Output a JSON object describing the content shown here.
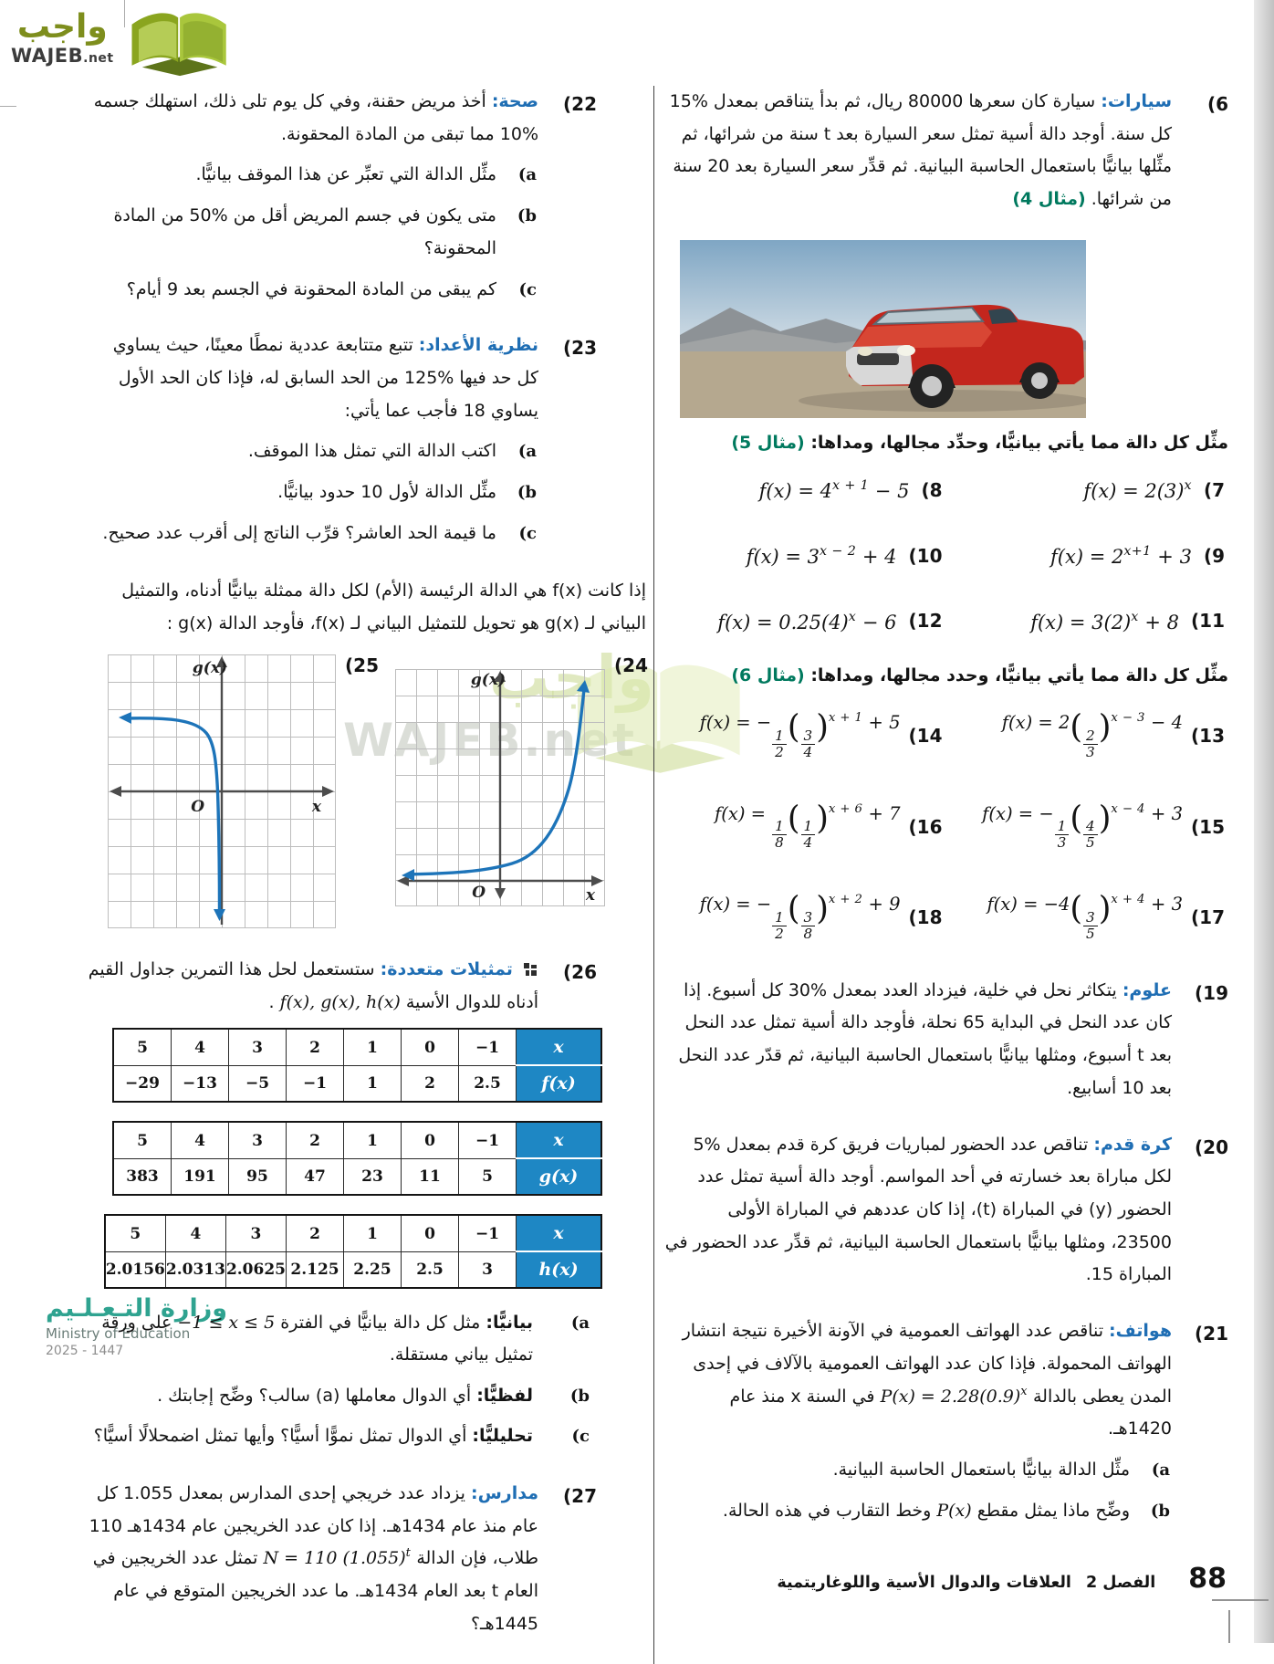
{
  "brand": {
    "arabic": "واجب",
    "latin": "WAJEB",
    "tld": ".net"
  },
  "watermark": {
    "latin": "WAJEB.net",
    "arabic": "واجب"
  },
  "right_column": {
    "p6": {
      "num": "(6",
      "keyword": "سيارات:",
      "text": "سيارة كان سعرها 80000 ريال، ثم بدأ يتناقص بمعدل %15 كل سنة. أوجد دالة أسية تمثل سعر السيارة بعد t سنة من شرائها، ثم مثِّلها بيانيًّا باستعمال الحاسبة البيانية. ثم قدِّر سعر السيارة بعد 20 سنة من شرائها.",
      "example": "(مثال 4)"
    },
    "header5": {
      "text": "مثِّل كل دالة مما يأتي بيانيًّا، وحدِّد مجالها، ومداها:",
      "example": "(مثال 5)"
    },
    "formulas_a": [
      {
        "num": "(7",
        "math": [
          "f(x) = 2(3)",
          {
            "sup": "x"
          }
        ]
      },
      {
        "num": "(8",
        "math": [
          "f(x) = 4",
          {
            "sup": "x + 1"
          },
          " − 5"
        ]
      },
      {
        "num": "(9",
        "math": [
          "f(x) = 2",
          {
            "sup": "x+1"
          },
          " + 3"
        ]
      },
      {
        "num": "(10",
        "math": [
          "f(x) = 3",
          {
            "sup": "x − 2"
          },
          " + 4"
        ]
      },
      {
        "num": "(11",
        "math": [
          "f(x) = 3(2)",
          {
            "sup": "x"
          },
          " + 8"
        ]
      },
      {
        "num": "(12",
        "math": [
          "f(x) = 0.25(4)",
          {
            "sup": "x"
          },
          " − 6"
        ]
      }
    ],
    "header6": {
      "text": "مثِّل كل دالة مما يأتي بيانيًّا، وحدد مجالها، ومداها:",
      "example": "(مثال 6)"
    },
    "formulas_b": [
      {
        "num": "(13",
        "math": [
          "f(x) = 2",
          {
            "pfrac": [
              "2",
              "3"
            ]
          },
          {
            "sup": "x − 3"
          },
          " − 4"
        ]
      },
      {
        "num": "(14",
        "math": [
          "f(x) = −",
          {
            "frac": [
              "1",
              "2"
            ]
          },
          {
            "pfrac": [
              "3",
              "4"
            ]
          },
          {
            "sup": "x + 1"
          },
          " + 5"
        ]
      },
      {
        "num": "(15",
        "math": [
          "f(x) = −",
          {
            "frac": [
              "1",
              "3"
            ]
          },
          {
            "pfrac": [
              "4",
              "5"
            ]
          },
          {
            "sup": "x − 4"
          },
          " + 3"
        ]
      },
      {
        "num": "(16",
        "math": [
          "f(x) = ",
          {
            "frac": [
              "1",
              "8"
            ]
          },
          {
            "pfrac": [
              "1",
              "4"
            ]
          },
          {
            "sup": "x + 6"
          },
          " + 7"
        ]
      },
      {
        "num": "(17",
        "math": [
          "f(x) = −4",
          {
            "pfrac": [
              "3",
              "5"
            ]
          },
          {
            "sup": "x + 4"
          },
          " + 3"
        ]
      },
      {
        "num": "(18",
        "math": [
          "f(x) = −",
          {
            "frac": [
              "1",
              "2"
            ]
          },
          {
            "pfrac": [
              "3",
              "8"
            ]
          },
          {
            "sup": "x + 2"
          },
          " + 9"
        ]
      }
    ],
    "p19": {
      "num": "(19",
      "keyword": "علوم:",
      "text": "يتكاثر نحل في خلية، فيزداد العدد بمعدل %30 كل أسبوع. إذا كان عدد النحل في البداية 65 نحلة، فأوجد دالة أسية تمثل عدد النحل بعد t أسبوع، ومثلها بيانيًّا باستعمال الحاسبة البيانية، ثم قدّر عدد النحل بعد 10 أسابيع."
    },
    "p20": {
      "num": "(20",
      "keyword": "كرة قدم:",
      "text": "تناقص عدد الحضور لمباريات فريق كرة قدم بمعدل %5 لكل مباراة بعد خسارته في أحد المواسم. أوجد دالة أسية تمثل عدد الحضور (y) في المباراة (t)، إذا كان عددهم في المباراة الأولى 23500، ومثلها بيانيًّا باستعمال الحاسبة البيانية، ثم قدِّر عدد الحضور في المباراة 15."
    },
    "p21": {
      "num": "(21",
      "keyword": "هواتف:",
      "text_before": "تناقص عدد الهواتف العمومية في الآونة الأخيرة نتيجة انتشار الهواتف المحمولة. فإذا كان عدد الهواتف العمومية بالآلاف في إحدى المدن يعطى بالدالة",
      "formula": [
        "P(x) = 2.28(0.9)",
        {
          "sup": "x"
        }
      ],
      "text_after": "في السنة x منذ عام 1420هـ.",
      "subs": [
        {
          "l": "(a",
          "t": "مثِّل الدالة بيانيًّا باستعمال الحاسبة البيانية."
        },
        {
          "l": "(b",
          "before": "وضِّح ماذا يمثل مقطع",
          "math": "P(x)",
          "after": "وخط التقارب في هذه الحالة."
        }
      ]
    }
  },
  "left_column": {
    "p22": {
      "num": "(22",
      "keyword": "صحة:",
      "text": "أخذ مريض حقنة، وفي كل يوم تلى ذلك، استهلك جسمه %10 مما تبقى من المادة المحقونة.",
      "subs": [
        {
          "l": "(a",
          "t": "مثِّل الدالة التي تعبِّر عن هذا الموقف بيانيًّا."
        },
        {
          "l": "(b",
          "t": "متى يكون في جسم المريض أقل من %50 من المادة المحقونة؟"
        },
        {
          "l": "(c",
          "t": "كم يبقى من المادة المحقونة في الجسم بعد 9 أيام؟"
        }
      ]
    },
    "p23": {
      "num": "(23",
      "keyword": "نظرية الأعداد:",
      "text": "تتبع متتابعة عددية نمطًا معينًا، حيث يساوي كل حد فيها %125 من الحد السابق له، فإذا كان الحد الأول يساوي 18 فأجب عما يأتي:",
      "subs": [
        {
          "l": "(a",
          "t": "اكتب الدالة التي تمثل هذا الموقف."
        },
        {
          "l": "(b",
          "t": "مثِّل الدالة لأول 10 حدود بيانيًّا."
        },
        {
          "l": "(c",
          "t": "ما قيمة الحد العاشر؟ قرِّب الناتج إلى أقرب عدد صحيح."
        }
      ]
    },
    "intro": "إذا كانت f(x) هي الدالة الرئيسة (الأم) لكل دالة ممثلة بيانيًّا أدناه، والتمثيل البياني لـ g(x) هو تحويل للتمثيل البياني لـ f(x)، فأوجد الدالة g(x) :",
    "graphs": [
      {
        "num": "(24",
        "ylabel": "g(x)",
        "xlabel": "x",
        "origin": "O"
      },
      {
        "num": "(25",
        "ylabel": "g(x)",
        "xlabel": "x",
        "origin": "O"
      }
    ],
    "p26": {
      "num": "(26",
      "keyword": "تمثيلات متعددة:",
      "text_before": "ستستعمل لحل هذا التمرين جداول القيم أدناه للدوال الأسية",
      "funcs": "f(x), g(x), h(x)",
      "period": ".",
      "subs": [
        {
          "l": "(a",
          "k": "بيانيًّا:",
          "before": "مثل كل دالة بيانيًّا في الفترة",
          "math": "−1 ≤ x ≤ 5",
          "after": "على ورقة تمثيل بياني مستقلة."
        },
        {
          "l": "(b",
          "k": "لفظيًّا:",
          "t": "أي الدوال معاملها (a) سالب؟ وضِّح إجابتك ."
        },
        {
          "l": "(c",
          "k": "تحليليًّا:",
          "t": "أي الدوال تمثل نموًّا أسيًّا؟ وأيها تمثل اضمحلالًا أسيًّا؟"
        }
      ]
    },
    "tables": [
      {
        "rows": [
          {
            "h": "x",
            "vals": [
              "−1",
              "0",
              "1",
              "2",
              "3",
              "4",
              "5"
            ]
          },
          {
            "h": "f(x)",
            "vals": [
              "2.5",
              "2",
              "1",
              "−1",
              "−5",
              "−13",
              "−29"
            ]
          }
        ]
      },
      {
        "rows": [
          {
            "h": "x",
            "vals": [
              "−1",
              "0",
              "1",
              "2",
              "3",
              "4",
              "5"
            ]
          },
          {
            "h": "g(x)",
            "vals": [
              "5",
              "11",
              "23",
              "47",
              "95",
              "191",
              "383"
            ]
          }
        ]
      },
      {
        "rows": [
          {
            "h": "x",
            "vals": [
              "−1",
              "0",
              "1",
              "2",
              "3",
              "4",
              "5"
            ]
          },
          {
            "h": "h(x)",
            "vals": [
              "3",
              "2.5",
              "2.25",
              "2.125",
              "2.0625",
              "2.0313",
              "2.0156"
            ]
          }
        ]
      }
    ],
    "p27": {
      "num": "(27",
      "keyword": "مدارس:",
      "before": "يزداد عدد خريجي إحدى المدارس بمعدل 1.055 كل عام منذ عام 1434هـ. إذا كان عدد الخريجين عام 1434هـ 110 طلاب، فإن الدالة",
      "formula": [
        "N = 110 (1.055)",
        {
          "sup": "t"
        }
      ],
      "after": "تمثل عدد الخريجين في العام t بعد العام 1434هـ. ما عدد الخريجين المتوقع في عام 1445هـ؟"
    }
  },
  "footer": {
    "page": "88",
    "chapter": "الفصل 2",
    "title": "العلاقات والدوال الأسية واللوغاريتمية"
  },
  "ministry": {
    "name_ar": "وزارة التـعـلـيم",
    "name_en": "Ministry of Education",
    "years": "2025 - 1447"
  },
  "colors": {
    "keyword_blue": "#1f6eb4",
    "example_teal": "#00795e",
    "table_header_blue": "#1e87c4",
    "curve_blue": "#1d74b9"
  }
}
